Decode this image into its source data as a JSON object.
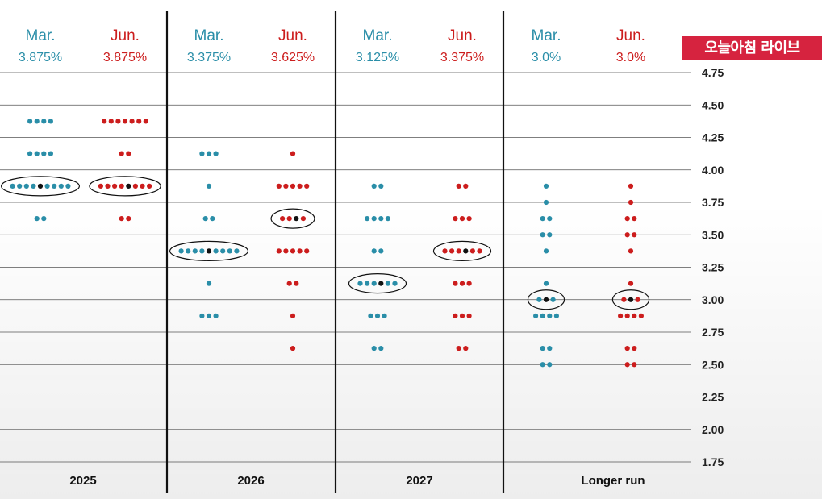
{
  "badge": {
    "text": "오늘아침 라이브",
    "color": "#d6233f"
  },
  "colors": {
    "mar": "#2a8ea8",
    "jun": "#cc1d1d",
    "median": "#111111",
    "grid": "#555555"
  },
  "chart_data": {
    "type": "scatter",
    "subtype": "dot-plot",
    "title": "",
    "xlabel": "",
    "ylabel": "",
    "ylim": [
      1.75,
      4.75
    ],
    "y_ticks": [
      "4.75",
      "4.50",
      "4.25",
      "4.00",
      "3.75",
      "3.50",
      "3.25",
      "3.00",
      "2.75",
      "2.50",
      "2.25",
      "2.00",
      "1.75"
    ],
    "y_axis_side": "right",
    "grid": true,
    "groups": [
      {
        "year": "2025",
        "columns": [
          {
            "label": "Mar.",
            "median_text": "3.875%",
            "series": "mar",
            "median": 3.875,
            "dots": [
              {
                "y": 4.375,
                "n": 4
              },
              {
                "y": 4.125,
                "n": 4
              },
              {
                "y": 3.875,
                "n": 9
              },
              {
                "y": 3.625,
                "n": 2
              }
            ]
          },
          {
            "label": "Jun.",
            "median_text": "3.875%",
            "series": "jun",
            "median": 3.875,
            "dots": [
              {
                "y": 4.375,
                "n": 7
              },
              {
                "y": 4.125,
                "n": 2
              },
              {
                "y": 3.875,
                "n": 8
              },
              {
                "y": 3.625,
                "n": 2
              }
            ]
          }
        ]
      },
      {
        "year": "2026",
        "columns": [
          {
            "label": "Mar.",
            "median_text": "3.375%",
            "series": "mar",
            "median": 3.375,
            "dots": [
              {
                "y": 4.125,
                "n": 3
              },
              {
                "y": 3.875,
                "n": 1
              },
              {
                "y": 3.625,
                "n": 2
              },
              {
                "y": 3.375,
                "n": 9
              },
              {
                "y": 3.125,
                "n": 1
              },
              {
                "y": 2.875,
                "n": 3
              }
            ]
          },
          {
            "label": "Jun.",
            "median_text": "3.625%",
            "series": "jun",
            "median": 3.625,
            "dots": [
              {
                "y": 4.125,
                "n": 1
              },
              {
                "y": 3.875,
                "n": 5
              },
              {
                "y": 3.625,
                "n": 4
              },
              {
                "y": 3.375,
                "n": 5
              },
              {
                "y": 3.125,
                "n": 2
              },
              {
                "y": 2.875,
                "n": 1
              },
              {
                "y": 2.625,
                "n": 1
              }
            ]
          }
        ]
      },
      {
        "year": "2027",
        "columns": [
          {
            "label": "Mar.",
            "median_text": "3.125%",
            "series": "mar",
            "median": 3.125,
            "dots": [
              {
                "y": 3.875,
                "n": 2
              },
              {
                "y": 3.625,
                "n": 4
              },
              {
                "y": 3.375,
                "n": 2
              },
              {
                "y": 3.125,
                "n": 6
              },
              {
                "y": 2.875,
                "n": 3
              },
              {
                "y": 2.625,
                "n": 2
              }
            ]
          },
          {
            "label": "Jun.",
            "median_text": "3.375%",
            "series": "jun",
            "median": 3.375,
            "dots": [
              {
                "y": 3.875,
                "n": 2
              },
              {
                "y": 3.625,
                "n": 3
              },
              {
                "y": 3.375,
                "n": 6
              },
              {
                "y": 3.125,
                "n": 3
              },
              {
                "y": 2.875,
                "n": 3
              },
              {
                "y": 2.625,
                "n": 2
              }
            ]
          }
        ]
      },
      {
        "year": "Longer run",
        "columns": [
          {
            "label": "Mar.",
            "median_text": "3.0%",
            "series": "mar",
            "median": 3.0,
            "dots": [
              {
                "y": 3.875,
                "n": 1
              },
              {
                "y": 3.75,
                "n": 1
              },
              {
                "y": 3.625,
                "n": 2
              },
              {
                "y": 3.5,
                "n": 2
              },
              {
                "y": 3.375,
                "n": 1
              },
              {
                "y": 3.125,
                "n": 1
              },
              {
                "y": 3.0,
                "n": 3
              },
              {
                "y": 2.875,
                "n": 4
              },
              {
                "y": 2.625,
                "n": 2
              },
              {
                "y": 2.5,
                "n": 2
              }
            ]
          },
          {
            "label": "Jun.",
            "median_text": "3.0%",
            "series": "jun",
            "median": 3.0,
            "dots": [
              {
                "y": 3.875,
                "n": 1
              },
              {
                "y": 3.75,
                "n": 1
              },
              {
                "y": 3.625,
                "n": 2
              },
              {
                "y": 3.5,
                "n": 2
              },
              {
                "y": 3.375,
                "n": 1
              },
              {
                "y": 3.125,
                "n": 1
              },
              {
                "y": 3.0,
                "n": 3
              },
              {
                "y": 2.875,
                "n": 4
              },
              {
                "y": 2.625,
                "n": 2
              },
              {
                "y": 2.5,
                "n": 2
              }
            ]
          }
        ]
      }
    ]
  }
}
